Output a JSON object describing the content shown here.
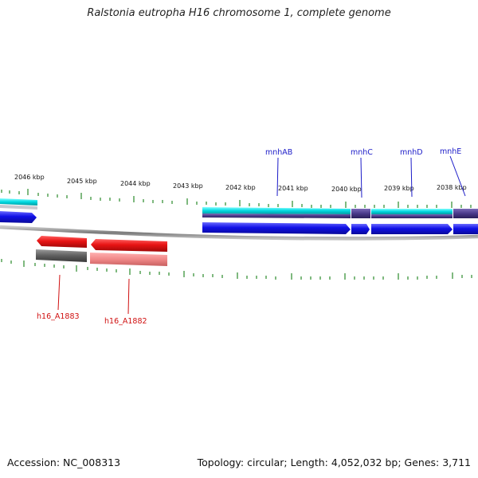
{
  "header": {
    "title": "Ralstonia eutropha H16 chromosome 1, complete genome"
  },
  "footer": {
    "accession": "Accession: NC_008313",
    "topology": "Topology: circular; Length: 4,052,032 bp; Genes: 3,711"
  },
  "map": {
    "kbp_labels": [
      "2046 kbp",
      "2045 kbp",
      "2044 kbp",
      "2043 kbp",
      "2042 kbp",
      "2041 kbp",
      "2040 kbp",
      "2039 kbp",
      "2038 kbp"
    ],
    "forward_genes": [
      "mnhAB",
      "mnhC",
      "mnhD",
      "mnhE"
    ],
    "reverse_genes": [
      "h16_A1883",
      "h16_A1882"
    ]
  },
  "colors": {
    "forward_cds": "#1010e6",
    "reverse_cds": "#e81414",
    "forward_feature_band": "#00d8e0",
    "feature_dark": "#4a3a8a",
    "backbone": "#8a8a8a",
    "tick": "#2a8a2a",
    "gene_label_forward": "#1b1bc8",
    "gene_label_reverse": "#d01010"
  }
}
